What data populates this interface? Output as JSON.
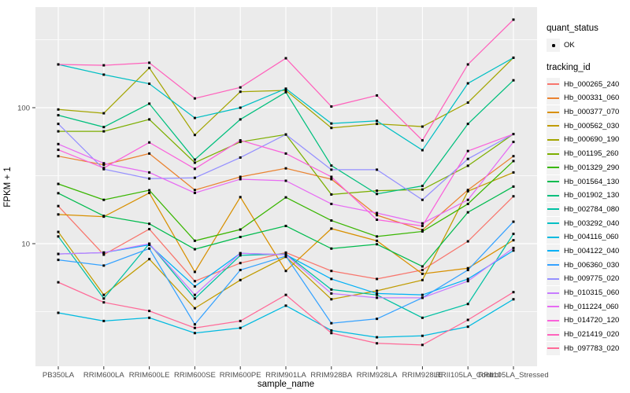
{
  "chart_data": {
    "type": "line",
    "xlabel": "sample_name",
    "ylabel": "FPKM + 1",
    "y_scale": "log10",
    "ylim": [
      1.5,
      480
    ],
    "y_ticks": [
      {
        "label": "100",
        "value": 100
      },
      {
        "label": "10",
        "value": 10
      }
    ],
    "grid": "on",
    "panel_bg": "#EBEBEB",
    "grid_color": "#FFFFFF",
    "point_color": "#000000",
    "categories": [
      "PB350LA",
      "RRIM600LA",
      "RRIM600LE",
      "RRIM600SE",
      "RRIM600PE",
      "RRIM901LA",
      "RRIM928BA",
      "RRIM928LA",
      "RRIM928LE",
      "RRII105LA_Control",
      "RRII105LA_Stressed"
    ],
    "series": [
      {
        "name": "Hb_000265_240",
        "color": "#F8766D",
        "values": [
          18.9,
          8.3,
          12.8,
          5.3,
          7.2,
          8.6,
          6.3,
          5.5,
          6.4,
          10.4,
          22.3
        ]
      },
      {
        "name": "Hb_000331_060",
        "color": "#EA8331",
        "values": [
          44,
          38,
          46,
          24.8,
          31,
          35.8,
          29.8,
          16.2,
          12.6,
          24.8,
          44
        ]
      },
      {
        "name": "Hb_000377_070",
        "color": "#D89000",
        "values": [
          16.4,
          15.8,
          23.6,
          6.2,
          22,
          6.3,
          12.9,
          10.5,
          6.0,
          6.6,
          10.6
        ]
      },
      {
        "name": "Hb_000562_030",
        "color": "#C09B00",
        "values": [
          12.2,
          4.2,
          7.7,
          3.35,
          5.4,
          8.0,
          3.9,
          4.5,
          5.4,
          24.3,
          33.4
        ]
      },
      {
        "name": "Hb_000690_190",
        "color": "#A3A500",
        "values": [
          97,
          91,
          196,
          63,
          131,
          134,
          71,
          76,
          72.6,
          109,
          233
        ]
      },
      {
        "name": "Hb_001195_260",
        "color": "#7CAE00",
        "values": [
          67,
          67,
          82,
          39.4,
          56,
          63.5,
          23,
          24.5,
          25,
          37.4,
          64
        ]
      },
      {
        "name": "Hb_001329_290",
        "color": "#39B600",
        "values": [
          27.5,
          21,
          24.7,
          10.5,
          12.7,
          21.9,
          14.8,
          11.3,
          12.3,
          19.6,
          40.5
        ]
      },
      {
        "name": "Hb_001564_130",
        "color": "#00BB4E",
        "values": [
          23.5,
          16,
          14,
          9.1,
          11.2,
          13.5,
          9.2,
          9.9,
          6.8,
          17,
          26.3
        ]
      },
      {
        "name": "Hb_001902_130",
        "color": "#00BF7D",
        "values": [
          88,
          72,
          107,
          41.5,
          82,
          130,
          37.5,
          23.2,
          26.6,
          76,
          159
        ]
      },
      {
        "name": "Hb_002784_080",
        "color": "#00C1A3",
        "values": [
          11.3,
          3.95,
          10,
          3.95,
          8.2,
          8.4,
          4.6,
          4.2,
          2.85,
          3.6,
          11.8
        ]
      },
      {
        "name": "Hb_003292_040",
        "color": "#00BFC4",
        "values": [
          208,
          175,
          150,
          84,
          100,
          138,
          76.5,
          80,
          48.7,
          151,
          233
        ]
      },
      {
        "name": "Hb_004116_060",
        "color": "#00BAE0",
        "values": [
          3.1,
          2.7,
          2.85,
          2.2,
          2.4,
          3.5,
          2.3,
          2.05,
          2.1,
          2.45,
          3.9
        ]
      },
      {
        "name": "Hb_004122_040",
        "color": "#00B0F6",
        "values": [
          8.4,
          8.6,
          9.8,
          4.85,
          8.5,
          8.3,
          5.5,
          4.3,
          4.2,
          5.5,
          8.9
        ]
      },
      {
        "name": "Hb_006360_030",
        "color": "#35A2FF",
        "values": [
          7.6,
          6.9,
          9.2,
          2.55,
          6.4,
          8.1,
          2.6,
          2.8,
          4.0,
          6.4,
          14.5
        ]
      },
      {
        "name": "Hb_009775_020",
        "color": "#9590FF",
        "values": [
          76,
          35.3,
          30.1,
          30.5,
          43,
          63.5,
          35,
          35,
          21,
          42,
          64
        ]
      },
      {
        "name": "Hb_010315_060",
        "color": "#C77CFF",
        "values": [
          8.4,
          8.6,
          10,
          4.2,
          8.5,
          8.3,
          4.3,
          4.0,
          4.0,
          5.3,
          9.3
        ]
      },
      {
        "name": "Hb_011224_060",
        "color": "#E76BF3",
        "values": [
          54,
          39,
          33.4,
          23.6,
          29.8,
          29,
          19.6,
          16.8,
          14.1,
          21,
          56
        ]
      },
      {
        "name": "Hb_014720_120",
        "color": "#FA62DB",
        "values": [
          49,
          36,
          55.5,
          35.5,
          57.5,
          46,
          31,
          15,
          13.5,
          48,
          64
        ]
      },
      {
        "name": "Hb_021419_020",
        "color": "#FF62BC",
        "values": [
          208,
          205,
          214,
          117,
          141,
          231,
          102,
          123,
          57.5,
          208,
          444
        ]
      },
      {
        "name": "Hb_097783_020",
        "color": "#FF6A98",
        "values": [
          5.2,
          3.7,
          3.2,
          2.4,
          2.7,
          4.2,
          2.2,
          1.85,
          1.8,
          2.75,
          4.4
        ]
      }
    ]
  },
  "legend": {
    "quant_status_title": "quant_status",
    "quant_status_items": [
      {
        "label": "OK"
      }
    ],
    "tracking_title": "tracking_id"
  }
}
